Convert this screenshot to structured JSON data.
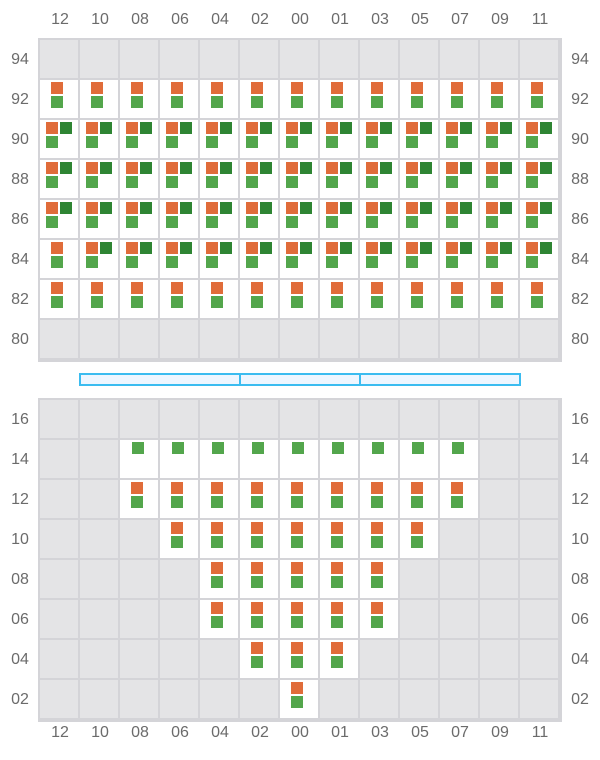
{
  "columns": [
    "12",
    "10",
    "08",
    "06",
    "04",
    "02",
    "00",
    "01",
    "03",
    "05",
    "07",
    "09",
    "11"
  ],
  "colors": {
    "empty": "#e4e4e6",
    "active": "#ffffff",
    "grid_line": "#d4d4d8",
    "orange": "#e06c3a",
    "light_green": "#53a64c",
    "dark_green": "#2e8533",
    "bar_border": "#3bbcf0",
    "bar_fill": "#eef6ff",
    "label": "#6b6b6b"
  },
  "legend_codes": {
    "": "empty",
    "G": "light green only",
    "OG": "orange + light green",
    "ODG": "orange + dark green + light green"
  },
  "top_section": {
    "rows": [
      {
        "label": "94",
        "cells": [
          "",
          "",
          "",
          "",
          "",
          "",
          "",
          "",
          "",
          "",
          "",
          "",
          ""
        ]
      },
      {
        "label": "92",
        "cells": [
          "OG",
          "OG",
          "OG",
          "OG",
          "OG",
          "OG",
          "OG",
          "OG",
          "OG",
          "OG",
          "OG",
          "OG",
          "OG"
        ]
      },
      {
        "label": "90",
        "cells": [
          "ODG",
          "ODG",
          "ODG",
          "ODG",
          "ODG",
          "ODG",
          "ODG",
          "ODG",
          "ODG",
          "ODG",
          "ODG",
          "ODG",
          "ODG"
        ]
      },
      {
        "label": "88",
        "cells": [
          "ODG",
          "ODG",
          "ODG",
          "ODG",
          "ODG",
          "ODG",
          "ODG",
          "ODG",
          "ODG",
          "ODG",
          "ODG",
          "ODG",
          "ODG"
        ]
      },
      {
        "label": "86",
        "cells": [
          "ODG",
          "ODG",
          "ODG",
          "ODG",
          "ODG",
          "ODG",
          "ODG",
          "ODG",
          "ODG",
          "ODG",
          "ODG",
          "ODG",
          "ODG"
        ]
      },
      {
        "label": "84",
        "cells": [
          "OG",
          "ODG",
          "ODG",
          "ODG",
          "ODG",
          "ODG",
          "ODG",
          "ODG",
          "ODG",
          "ODG",
          "ODG",
          "ODG",
          "ODG"
        ]
      },
      {
        "label": "82",
        "cells": [
          "OG",
          "OG",
          "OG",
          "OG",
          "OG",
          "OG",
          "OG",
          "OG",
          "OG",
          "OG",
          "OG",
          "OG",
          "OG"
        ]
      },
      {
        "label": "80",
        "cells": [
          "",
          "",
          "",
          "",
          "",
          "",
          "",
          "",
          "",
          "",
          "",
          "",
          ""
        ]
      }
    ]
  },
  "bottom_section": {
    "rows": [
      {
        "label": "16",
        "cells": [
          "",
          "",
          "",
          "",
          "",
          "",
          "",
          "",
          "",
          "",
          "",
          "",
          ""
        ]
      },
      {
        "label": "14",
        "cells": [
          "",
          "",
          "G",
          "G",
          "G",
          "G",
          "G",
          "G",
          "G",
          "G",
          "G",
          "",
          ""
        ]
      },
      {
        "label": "12",
        "cells": [
          "",
          "",
          "OG",
          "OG",
          "OG",
          "OG",
          "OG",
          "OG",
          "OG",
          "OG",
          "OG",
          "",
          ""
        ]
      },
      {
        "label": "10",
        "cells": [
          "",
          "",
          "",
          "OG",
          "OG",
          "OG",
          "OG",
          "OG",
          "OG",
          "OG",
          "",
          "",
          ""
        ]
      },
      {
        "label": "08",
        "cells": [
          "",
          "",
          "",
          "",
          "OG",
          "OG",
          "OG",
          "OG",
          "OG",
          "",
          "",
          "",
          ""
        ]
      },
      {
        "label": "06",
        "cells": [
          "",
          "",
          "",
          "",
          "OG",
          "OG",
          "OG",
          "OG",
          "OG",
          "",
          "",
          "",
          ""
        ]
      },
      {
        "label": "04",
        "cells": [
          "",
          "",
          "",
          "",
          "",
          "OG",
          "OG",
          "OG",
          "",
          "",
          "",
          "",
          ""
        ]
      },
      {
        "label": "02",
        "cells": [
          "",
          "",
          "",
          "",
          "",
          "",
          "OG",
          "",
          "",
          "",
          "",
          "",
          ""
        ]
      }
    ]
  },
  "divider_segments": [
    {
      "from_col": "10",
      "to_col": "02"
    },
    {
      "from_col": "00",
      "to_col": "01"
    },
    {
      "from_col": "03",
      "to_col": "09"
    }
  ]
}
